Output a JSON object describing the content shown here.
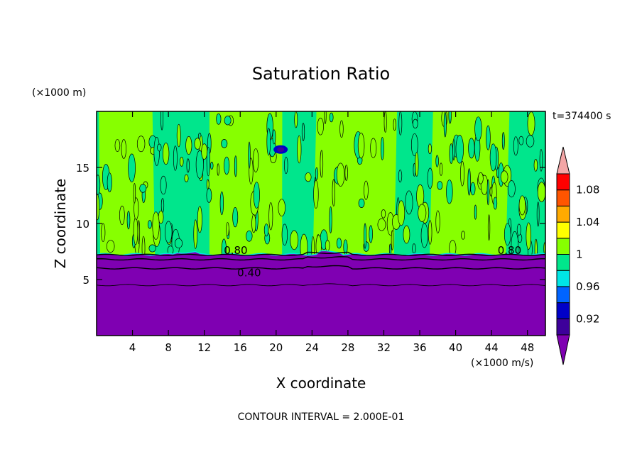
{
  "chart_data": {
    "type": "heatmap",
    "title": "Saturation Ratio",
    "xlabel": "X coordinate",
    "ylabel": "Z coordinate",
    "x_units": "(×1000 m/s)",
    "y_units": "(×1000 m)",
    "time_label": "t=374400 s",
    "footer": "CONTOUR INTERVAL = 2.000E-01",
    "xlim": [
      0,
      50
    ],
    "ylim": [
      0,
      20
    ],
    "x_ticks": [
      "4",
      "8",
      "12",
      "16",
      "20",
      "24",
      "28",
      "32",
      "36",
      "40",
      "44",
      "48"
    ],
    "y_ticks": [
      "5",
      "10",
      "15"
    ],
    "x_tick_values": [
      4,
      8,
      12,
      16,
      20,
      24,
      28,
      32,
      36,
      40,
      44,
      48
    ],
    "y_tick_values": [
      5,
      10,
      15
    ],
    "colorbar": {
      "levels": [
        0.9,
        0.92,
        0.94,
        0.96,
        0.98,
        1.0,
        1.02,
        1.04,
        1.06,
        1.08,
        1.1
      ],
      "colors": [
        "#7f00b2",
        "#3d009a",
        "#0000c8",
        "#0064ff",
        "#00e6e6",
        "#00e68c",
        "#87ff00",
        "#ffff00",
        "#ffaa00",
        "#ff5500",
        "#ff0000",
        "#f4a6a6"
      ],
      "labels": [
        "0.92",
        "0.96",
        "1",
        "1.04",
        "1.08"
      ],
      "label_values": [
        0.92,
        0.96,
        1.0,
        1.04,
        1.08
      ]
    },
    "contour_labels": [
      {
        "text": "0.80",
        "x": 15.5,
        "z": 7.6
      },
      {
        "text": "0.40",
        "x": 17.0,
        "z": 5.6
      },
      {
        "text": "0.80",
        "x": 46.0,
        "z": 7.6
      }
    ],
    "fields": {
      "background_value": 0.99,
      "lower_layer_top_z": 7.2,
      "lower_layer_value": 0.5,
      "contour_lines_z": [
        7.2,
        6.8,
        6.0,
        4.5
      ],
      "high_bands": [
        {
          "x": [
            0,
            6
          ],
          "value": 1.01
        },
        {
          "x": [
            12.5,
            20.5
          ],
          "value": 1.01
        },
        {
          "x": [
            24.5,
            33.5
          ],
          "value": 1.01
        },
        {
          "x": [
            37.5,
            46
          ],
          "value": 1.01
        }
      ],
      "dry_spot": {
        "x": 20.5,
        "z": 16.6,
        "value": 0.91
      }
    }
  }
}
